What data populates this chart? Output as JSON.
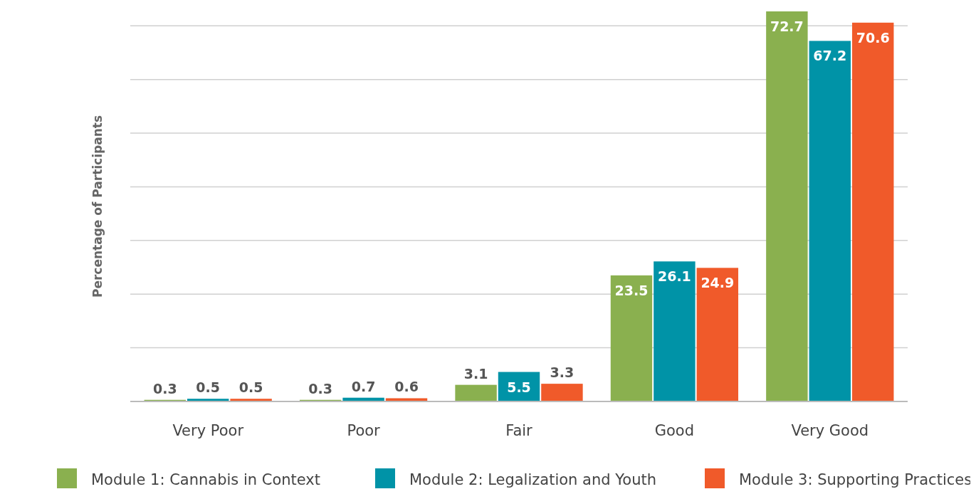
{
  "chart_data": {
    "type": "bar",
    "ylabel": "Percentage of Participants",
    "categories": [
      "Very Poor",
      "Poor",
      "Fair",
      "Good",
      "Very Good"
    ],
    "series": [
      {
        "name": "Module 1: Cannabis in Context",
        "color": "#8ab04f",
        "values": [
          0.3,
          0.3,
          3.1,
          23.5,
          72.7
        ]
      },
      {
        "name": "Module 2: Legalization and Youth",
        "color": "#0093a7",
        "values": [
          0.5,
          0.7,
          5.5,
          26.1,
          67.2
        ]
      },
      {
        "name": "Module 3: Supporting Practices",
        "color": "#f05a2a",
        "values": [
          0.5,
          0.6,
          3.3,
          24.9,
          70.6
        ]
      }
    ],
    "yticks": [
      {
        "value": 0,
        "label": null
      },
      {
        "value": 10,
        "label": null
      },
      {
        "value": 20,
        "label": null
      },
      {
        "value": 30,
        "label": null
      },
      {
        "value": 40,
        "label": null
      },
      {
        "value": 50,
        "label": null
      },
      {
        "value": 60,
        "label": null
      },
      {
        "value": 70,
        "label": null
      }
    ],
    "tick_labels": "x",
    "grid": "y",
    "data_labels": true,
    "legend": "bottom"
  }
}
